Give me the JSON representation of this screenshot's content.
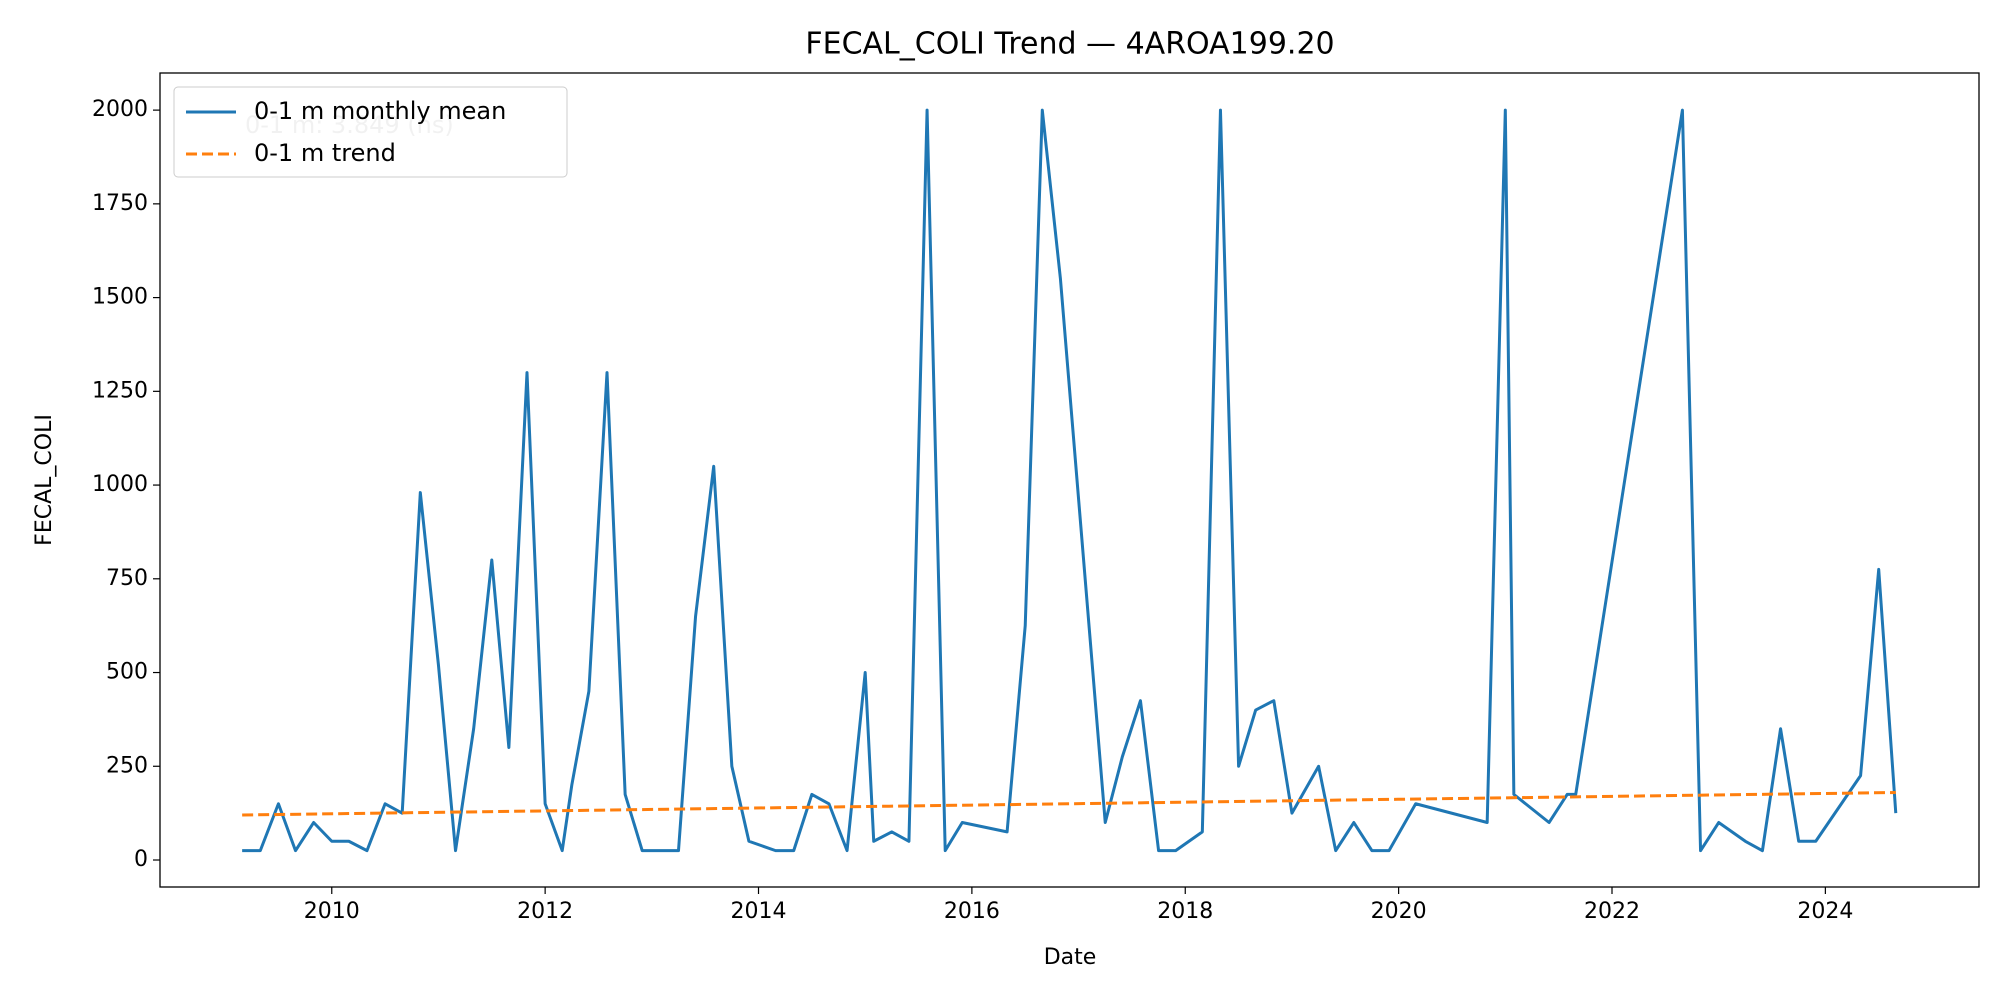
{
  "chart_data": {
    "type": "line",
    "title": "FECAL_COLI Trend — 4AROA199.20",
    "x_label": "Date",
    "y_label": "FECAL_COLI",
    "annotation": "0-1 m: 3.849 (ns)",
    "series": [
      {
        "name": "0-1 m monthly mean",
        "color": "#1f77b4",
        "style": "solid",
        "x": [
          2009.16,
          2009.33,
          2009.5,
          2009.66,
          2009.83,
          2010.0,
          2010.16,
          2010.33,
          2010.5,
          2010.66,
          2010.83,
          2011.0,
          2011.16,
          2011.33,
          2011.5,
          2011.66,
          2011.83,
          2012.0,
          2012.16,
          2012.25,
          2012.41,
          2012.58,
          2012.75,
          2012.91,
          2013.25,
          2013.41,
          2013.58,
          2013.75,
          2013.91,
          2014.16,
          2014.33,
          2014.5,
          2014.66,
          2014.83,
          2015.0,
          2015.08,
          2015.25,
          2015.41,
          2015.58,
          2015.75,
          2015.91,
          2016.33,
          2016.5,
          2016.66,
          2016.83,
          2017.25,
          2017.41,
          2017.58,
          2017.75,
          2017.91,
          2018.16,
          2018.33,
          2018.5,
          2018.66,
          2018.83,
          2019.0,
          2019.25,
          2019.41,
          2019.58,
          2019.75,
          2019.91,
          2020.16,
          2020.83,
          2021.0,
          2021.08,
          2021.41,
          2021.58,
          2021.66,
          2022.66,
          2022.83,
          2023.0,
          2023.25,
          2023.41,
          2023.58,
          2023.75,
          2023.91,
          2024.33,
          2024.5,
          2024.66
        ],
        "values": [
          25,
          25,
          150,
          25,
          100,
          50,
          50,
          25,
          150,
          125,
          980,
          520,
          25,
          350,
          800,
          300,
          1300,
          150,
          25,
          200,
          450,
          1300,
          175,
          25,
          25,
          650,
          1050,
          250,
          50,
          25,
          25,
          175,
          150,
          25,
          500,
          50,
          75,
          50,
          2000,
          25,
          100,
          75,
          625,
          2000,
          1550,
          100,
          275,
          425,
          25,
          25,
          75,
          2000,
          250,
          400,
          425,
          125,
          250,
          25,
          100,
          25,
          25,
          150,
          100,
          2000,
          175,
          100,
          175,
          175,
          2000,
          25,
          100,
          50,
          25,
          350,
          50,
          50,
          225,
          775,
          125
        ]
      },
      {
        "name": "0-1 m trend",
        "color": "#ff7f0e",
        "style": "dashed",
        "x": [
          2009.16,
          2024.66
        ],
        "values": [
          120,
          180
        ]
      }
    ],
    "xlim": [
      2008.39,
      2025.44
    ],
    "xticks": [
      2010,
      2012,
      2014,
      2016,
      2018,
      2020,
      2022,
      2024
    ],
    "ylim": [
      -72,
      2099
    ],
    "yticks": [
      0,
      250,
      500,
      750,
      1000,
      1250,
      1500,
      1750,
      2000
    ],
    "legend": "upper left",
    "grid": false
  }
}
